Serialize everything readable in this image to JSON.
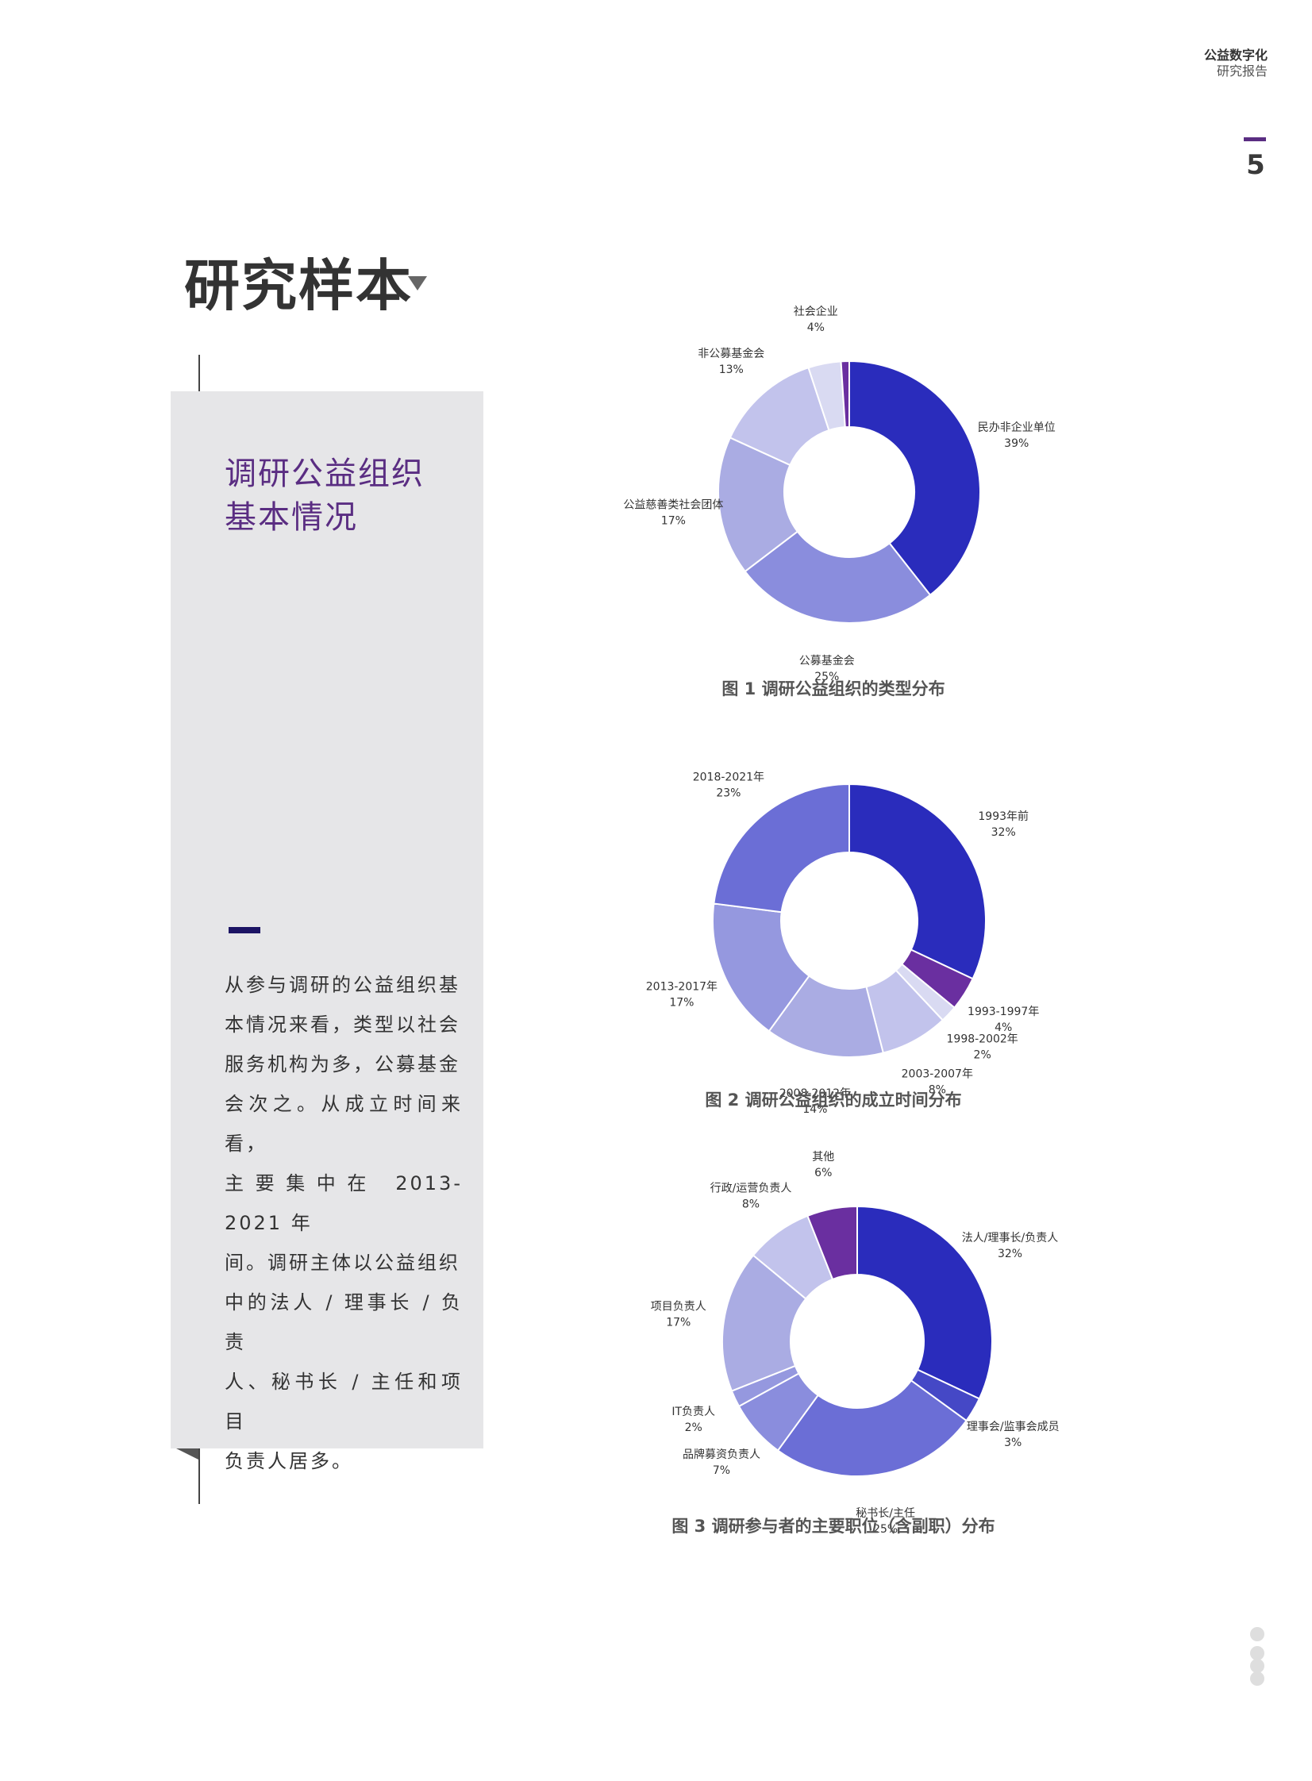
{
  "header": {
    "title": "公益数字化",
    "subtitle": "研究报告",
    "page_number": "5"
  },
  "section_title": "研究样本",
  "sidebar": {
    "heading_line1": "调研公益组织",
    "heading_line2": "基本情况",
    "body_lines": [
      "从参与调研的公益组织基",
      "本情况来看，类型以社会",
      "服务机构为多，公募基金",
      "会次之。从成立时间来看，",
      "主要集中在 2013-2021 年",
      "间。调研主体以公益组织",
      "中的法人 / 理事长 / 负责",
      "人、秘书长 / 主任和项目",
      "负责人居多。"
    ]
  },
  "chart_data": [
    {
      "type": "pie",
      "title": "图 1 调研公益组织的类型分布",
      "donut": true,
      "categories": [
        "民办非企业单位",
        "公募基金会",
        "公益慈善类社会团体",
        "非公募基金会",
        "社会企业",
        ""
      ],
      "values": [
        39,
        25,
        17,
        13,
        4,
        1
      ],
      "value_labels": [
        "39%",
        "25%",
        "17%",
        "13%",
        "4%",
        ""
      ],
      "colors": [
        "#2a2cbc",
        "#8a8ddd",
        "#aaace3",
        "#c2c3ec",
        "#d9daf2",
        "#6a2fa0"
      ]
    },
    {
      "type": "pie",
      "title": "图 2 调研公益组织的成立时间分布",
      "donut": true,
      "categories": [
        "1993年前",
        "1993-1997年",
        "1998-2002年",
        "2003-2007年",
        "2008-2012年",
        "2013-2017年",
        "2018-2021年"
      ],
      "values": [
        32,
        4,
        2,
        8,
        14,
        17,
        23
      ],
      "value_labels": [
        "32%",
        "4%",
        "2%",
        "8%",
        "14%",
        "17%",
        "23%"
      ],
      "colors": [
        "#2a2cbc",
        "#6a2fa0",
        "#d9daf2",
        "#c2c3ec",
        "#aaace3",
        "#9598df",
        "#6b6ed6"
      ]
    },
    {
      "type": "pie",
      "title": "图 3 调研参与者的主要职位（含副职）分布",
      "donut": true,
      "categories": [
        "法人/理事长/负责人",
        "理事会/监事会成员",
        "秘书长/主任",
        "品牌募资负责人",
        "IT负责人",
        "项目负责人",
        "行政/运营负责人",
        "其他"
      ],
      "values": [
        32,
        3,
        25,
        7,
        2,
        17,
        8,
        6
      ],
      "value_labels": [
        "32%",
        "3%",
        "25%",
        "7%",
        "2%",
        "17%",
        "8%",
        "6%"
      ],
      "colors": [
        "#2a2cbc",
        "#4548c6",
        "#6b6ed6",
        "#8a8ddd",
        "#9598df",
        "#aaace3",
        "#c2c3ec",
        "#6a2fa0"
      ]
    }
  ]
}
